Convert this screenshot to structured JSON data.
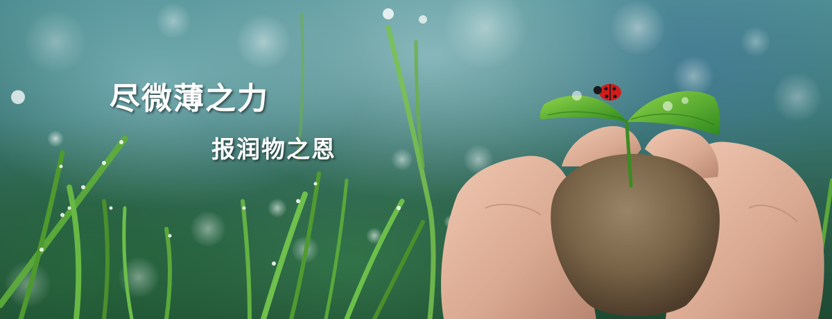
{
  "banner": {
    "headline": "尽微薄之力",
    "subheadline": "报润物之恩"
  },
  "colors": {
    "text": "#ffffff",
    "leaf": "#4fae2c",
    "soil": "#7a6448",
    "skin": "#d9a890",
    "ladybug": "#d21c1c"
  },
  "icons": [
    "sprout-icon",
    "ladybug-icon"
  ]
}
